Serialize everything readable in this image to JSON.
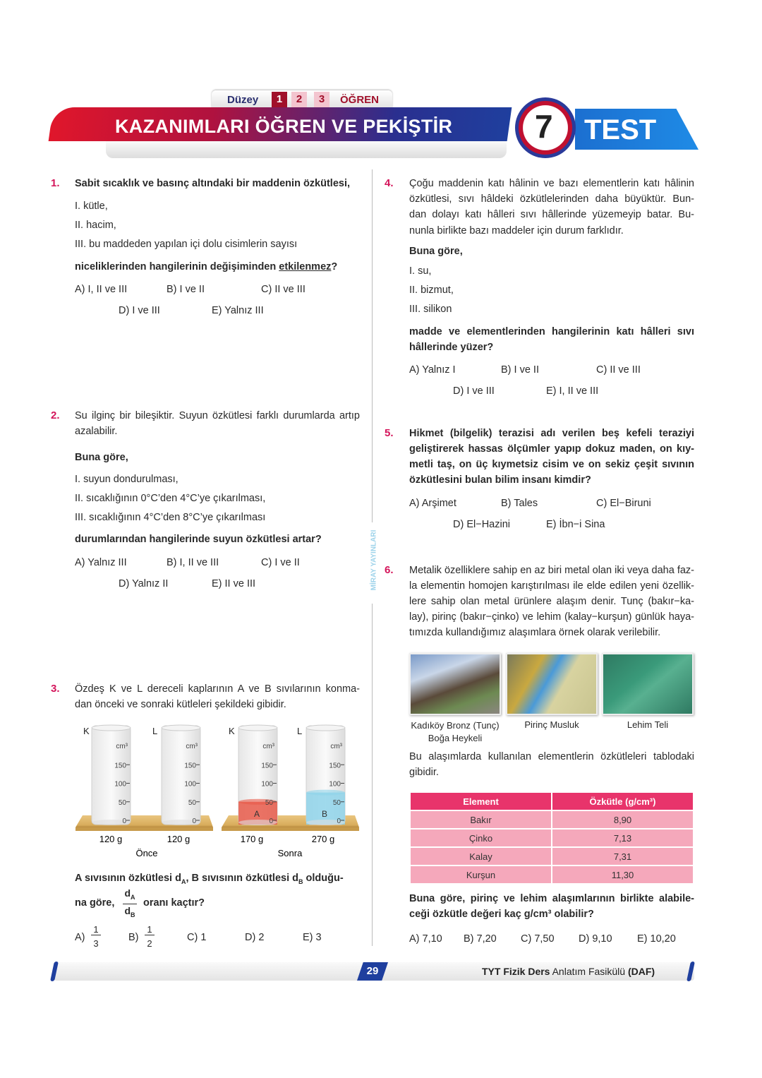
{
  "header": {
    "level_label": "Düzey",
    "levels": [
      "1",
      "2",
      "3"
    ],
    "level_name": "ÖĞREN",
    "title": "KAZANIMLARI ÖĞREN VE PEKİŞTİR",
    "test_number": "7",
    "test_label": "TEST",
    "colors": {
      "red": "#d4145a",
      "blue": "#1f6fd0"
    }
  },
  "side_text": "MİRAY YAYINLARI",
  "q1": {
    "number": "1.",
    "stem": "Sabit sıcaklık ve basınç altındaki bir maddenin özkütlesi,",
    "items": [
      "I.  kütle,",
      "II.  hacim,",
      "III.  bu maddeden yapılan içi dolu cisimlerin sayısı"
    ],
    "question_pre": "niceliklerinden hangilerinin değişiminden ",
    "question_underlined": "etkilenmez",
    "question_post": "?",
    "options": [
      "A) I, II ve III",
      "B) I ve II",
      "C) II ve III",
      "D) I ve III",
      "E) Yalnız III"
    ]
  },
  "q2": {
    "number": "2.",
    "stem": [
      "Su ilginç bir bileşiktir. Suyun özkütlesi farklı durumlarda artıp",
      "azalabilir."
    ],
    "lead": "Buna göre,",
    "items": [
      "I.  suyun dondurulması,",
      "II.  sıcaklığının 0°C’den 4°C’ye çıkarılması,",
      "III.  sıcaklığının 4°C’den 8°C’ye çıkarılması"
    ],
    "question": "durumlarından hangilerinde suyun özkütlesi artar?",
    "options": [
      "A) Yalnız III",
      "B) I, II ve III",
      "C) I ve II",
      "D) Yalnız II",
      "E) II ve III"
    ]
  },
  "q3": {
    "number": "3.",
    "stem": [
      "Özdeş K ve L dereceli kaplarının A ve B sıvılarının konma-",
      "dan önceki ve sonraki kütleleri şekildeki gibidir."
    ],
    "figure": {
      "containers": [
        "K",
        "L",
        "K",
        "L"
      ],
      "unit": "cm³",
      "scale": [
        "150",
        "100",
        "50",
        "0"
      ],
      "masses": [
        "120 g",
        "120 g",
        "170 g",
        "270 g"
      ],
      "liquids": [
        "A",
        "B"
      ],
      "liquid_volumes_cm3": [
        50,
        75
      ],
      "captions": [
        "Önce",
        "Sonra"
      ]
    },
    "question_line1": "A sıvısının özkütlesi d",
    "sub_A": "A",
    "sub_B": "B",
    "mid": ", B sıvısının özkütlesi d",
    "end1": " olduğu-",
    "question_line2_pre": "na göre,",
    "frac_num": "d",
    "frac_den": "d",
    "question_line2_post": "oranı kaçtır?",
    "options": [
      {
        "label": "A)",
        "num": "1",
        "den": "3"
      },
      {
        "label": "B)",
        "num": "1",
        "den": "2"
      },
      {
        "label": "C) 1"
      },
      {
        "label": "D) 2"
      },
      {
        "label": "E) 3"
      }
    ]
  },
  "q4": {
    "number": "4.",
    "stem": [
      "Çoğu maddenin katı hâlinin ve bazı elementlerin katı hâlinin",
      "özkütlesi, sıvı hâldeki özkütlelerinden daha büyüktür. Bun-",
      "dan dolayı katı hâlleri sıvı hâllerinde yüzemeyip batar. Bu-",
      "nunla birlikte bazı maddeler için durum farklıdır."
    ],
    "lead": "Buna göre,",
    "items": [
      "I.  su,",
      "II.  bizmut,",
      "III.  silikon"
    ],
    "question": [
      "madde ve elementlerinden hangilerinin katı hâlleri sıvı",
      "hâllerinde yüzer?"
    ],
    "options": [
      "A) Yalnız I",
      "B) I ve II",
      "C) II ve III",
      "D) I ve III",
      "E) I, II ve III"
    ]
  },
  "q5": {
    "number": "5.",
    "stem": [
      "Hikmet (bilgelik) terazisi adı verilen beş kefeli teraziyi",
      "geliştirerek hassas ölçümler yapıp dokuz maden, on kıy-",
      "metli taş, on üç kıymetsiz cisim ve on sekiz çeşit sıvının",
      "özkütlesini bulan bilim insanı kimdir?"
    ],
    "options": [
      "A) Arşimet",
      "B) Tales",
      "C) El−Biruni",
      "D) El−Hazini",
      "E) İbn−i Sina"
    ]
  },
  "q6": {
    "number": "6.",
    "stem": [
      "Metalik özelliklere sahip en az biri metal olan iki veya daha faz-",
      "la elementin homojen karıştırılması ile elde edilen yeni özellik-",
      "lere sahip olan metal ürünlere alaşım denir. Tunç (bakır−ka-",
      "lay), pirinç (bakır−çinko) ve lehim (kalay−kurşun) günlük haya-",
      "tımızda kullandığımız alaşımlara örnek olarak verilebilir."
    ],
    "photos": [
      {
        "caption": [
          "Kadıköy Bronz (Tunç)",
          "Boğa Heykeli"
        ]
      },
      {
        "caption": [
          "Pirinç Musluk"
        ]
      },
      {
        "caption": [
          "Lehim Teli"
        ]
      }
    ],
    "intro": [
      "Bu alaşımlarda kullanılan elementlerin özkütleleri tablodaki",
      "gibidir."
    ],
    "table": {
      "headers": [
        "Element",
        "Özkütle (g/cm³)"
      ],
      "rows": [
        [
          "Bakır",
          "8,90"
        ],
        [
          "Çinko",
          "7,13"
        ],
        [
          "Kalay",
          "7,31"
        ],
        [
          "Kurşun",
          "11,30"
        ]
      ]
    },
    "question": [
      "Buna göre, pirinç ve lehim alaşımlarının birlikte alabile-",
      "ceği özkütle değeri kaç g/cm³ olabilir?"
    ],
    "options": [
      "A) 7,10",
      "B) 7,20",
      "C) 7,50",
      "D) 9,10",
      "E) 10,20"
    ]
  },
  "footer": {
    "page": "29",
    "book_bold1": "TYT Fizik Ders",
    "book_light": " Anlatım Fasikülü ",
    "book_bold2": "(DAF)"
  }
}
